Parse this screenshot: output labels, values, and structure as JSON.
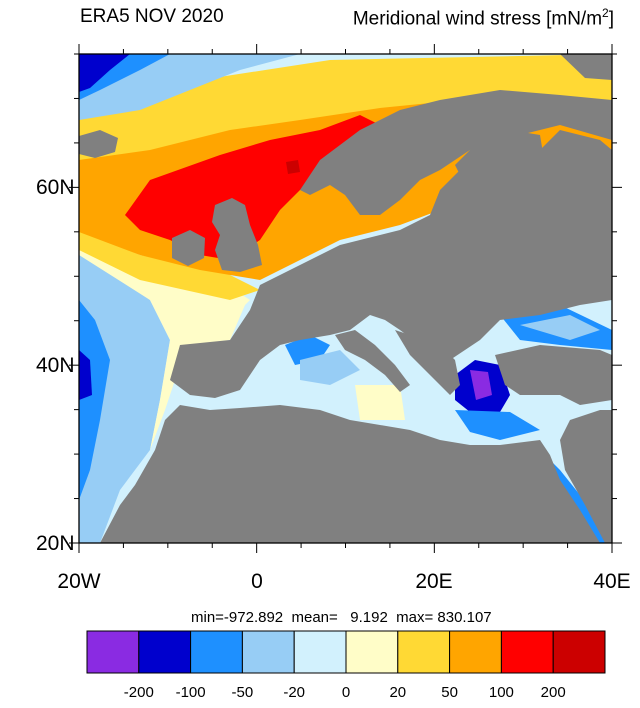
{
  "header": {
    "dataset_label": "ERA5 NOV 2020",
    "variable_label": "Meridional wind stress [mN/m",
    "unit_superscript": "2",
    "unit_close": "]"
  },
  "map": {
    "lon_range": [
      -20,
      40
    ],
    "lat_range": [
      20,
      75
    ],
    "lat_ticks": [
      {
        "value": 20,
        "label": "20N"
      },
      {
        "value": 40,
        "label": "40N"
      },
      {
        "value": 60,
        "label": "60N"
      }
    ],
    "lon_ticks": [
      {
        "value": -20,
        "label": "20W"
      },
      {
        "value": 0,
        "label": "0"
      },
      {
        "value": 20,
        "label": "20E"
      },
      {
        "value": 40,
        "label": "40E"
      }
    ],
    "land_color": "#808080",
    "region": "Europe, North Atlantic, Mediterranean"
  },
  "stats": {
    "text": "min=-972.892  mean=   9.192  max= 830.107",
    "min": -972.892,
    "mean": 9.192,
    "max": 830.107
  },
  "colorbar": {
    "colors": [
      "#8a2be2",
      "#0000cd",
      "#1e90ff",
      "#97cdf5",
      "#d2f1fd",
      "#fffdc8",
      "#ffd934",
      "#ffa500",
      "#ff0000",
      "#cc0000"
    ],
    "labels": [
      "-200",
      "-100",
      "-50",
      "-20",
      "0",
      "20",
      "50",
      "100",
      "200"
    ]
  }
}
